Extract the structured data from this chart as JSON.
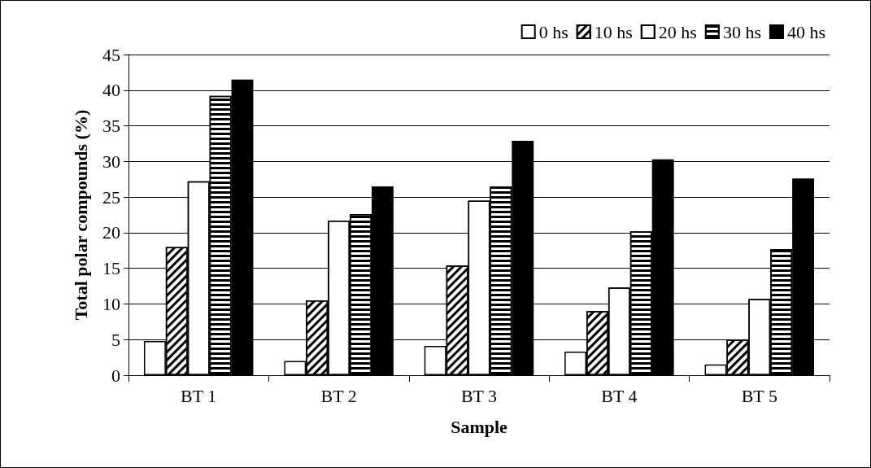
{
  "chart_data": {
    "type": "bar",
    "xlabel": "Sample",
    "ylabel": "Total polar compounds (%)",
    "categories": [
      "BT 1",
      "BT 2",
      "BT 3",
      "BT 4",
      "BT 5"
    ],
    "series": [
      {
        "name": "0 hs",
        "color": "#ffffff",
        "values": [
          4.8,
          2.0,
          4.1,
          3.3,
          1.5
        ]
      },
      {
        "name": "10 hs",
        "color": "#ffffff",
        "values": [
          18.0,
          10.5,
          15.4,
          9.0,
          5.0
        ]
      },
      {
        "name": "20 hs",
        "color": "#ffffff",
        "values": [
          27.2,
          21.7,
          24.5,
          12.3,
          10.7
        ]
      },
      {
        "name": "30 hs",
        "color": "#ffffff",
        "values": [
          39.2,
          22.6,
          26.5,
          20.2,
          17.7
        ]
      },
      {
        "name": "40 hs",
        "color": "#000000",
        "values": [
          41.5,
          26.5,
          32.9,
          30.3,
          27.6
        ]
      }
    ],
    "ylim": [
      0,
      45
    ],
    "yticks": [
      0,
      5,
      10,
      15,
      20,
      25,
      30,
      35,
      40,
      45
    ],
    "grid": "y",
    "legend": "top right"
  }
}
